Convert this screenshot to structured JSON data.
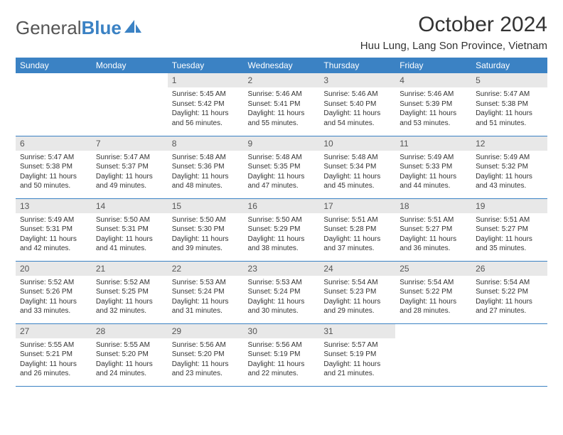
{
  "brand": {
    "part1": "General",
    "part2": "Blue"
  },
  "title": "October 2024",
  "location": "Huu Lung, Lang Son Province, Vietnam",
  "colors": {
    "header_bg": "#3b82c4",
    "header_text": "#ffffff",
    "daynum_bg": "#e8e8e8",
    "text": "#333333",
    "row_border": "#3b82c4"
  },
  "fonts": {
    "title_size_pt": 22,
    "location_size_pt": 11,
    "dayhead_size_pt": 9,
    "body_size_pt": 7.5
  },
  "day_headers": [
    "Sunday",
    "Monday",
    "Tuesday",
    "Wednesday",
    "Thursday",
    "Friday",
    "Saturday"
  ],
  "weeks": [
    [
      {
        "num": "",
        "sunrise": "",
        "sunset": "",
        "daylight": ""
      },
      {
        "num": "",
        "sunrise": "",
        "sunset": "",
        "daylight": ""
      },
      {
        "num": "1",
        "sunrise": "Sunrise: 5:45 AM",
        "sunset": "Sunset: 5:42 PM",
        "daylight": "Daylight: 11 hours and 56 minutes."
      },
      {
        "num": "2",
        "sunrise": "Sunrise: 5:46 AM",
        "sunset": "Sunset: 5:41 PM",
        "daylight": "Daylight: 11 hours and 55 minutes."
      },
      {
        "num": "3",
        "sunrise": "Sunrise: 5:46 AM",
        "sunset": "Sunset: 5:40 PM",
        "daylight": "Daylight: 11 hours and 54 minutes."
      },
      {
        "num": "4",
        "sunrise": "Sunrise: 5:46 AM",
        "sunset": "Sunset: 5:39 PM",
        "daylight": "Daylight: 11 hours and 53 minutes."
      },
      {
        "num": "5",
        "sunrise": "Sunrise: 5:47 AM",
        "sunset": "Sunset: 5:38 PM",
        "daylight": "Daylight: 11 hours and 51 minutes."
      }
    ],
    [
      {
        "num": "6",
        "sunrise": "Sunrise: 5:47 AM",
        "sunset": "Sunset: 5:38 PM",
        "daylight": "Daylight: 11 hours and 50 minutes."
      },
      {
        "num": "7",
        "sunrise": "Sunrise: 5:47 AM",
        "sunset": "Sunset: 5:37 PM",
        "daylight": "Daylight: 11 hours and 49 minutes."
      },
      {
        "num": "8",
        "sunrise": "Sunrise: 5:48 AM",
        "sunset": "Sunset: 5:36 PM",
        "daylight": "Daylight: 11 hours and 48 minutes."
      },
      {
        "num": "9",
        "sunrise": "Sunrise: 5:48 AM",
        "sunset": "Sunset: 5:35 PM",
        "daylight": "Daylight: 11 hours and 47 minutes."
      },
      {
        "num": "10",
        "sunrise": "Sunrise: 5:48 AM",
        "sunset": "Sunset: 5:34 PM",
        "daylight": "Daylight: 11 hours and 45 minutes."
      },
      {
        "num": "11",
        "sunrise": "Sunrise: 5:49 AM",
        "sunset": "Sunset: 5:33 PM",
        "daylight": "Daylight: 11 hours and 44 minutes."
      },
      {
        "num": "12",
        "sunrise": "Sunrise: 5:49 AM",
        "sunset": "Sunset: 5:32 PM",
        "daylight": "Daylight: 11 hours and 43 minutes."
      }
    ],
    [
      {
        "num": "13",
        "sunrise": "Sunrise: 5:49 AM",
        "sunset": "Sunset: 5:31 PM",
        "daylight": "Daylight: 11 hours and 42 minutes."
      },
      {
        "num": "14",
        "sunrise": "Sunrise: 5:50 AM",
        "sunset": "Sunset: 5:31 PM",
        "daylight": "Daylight: 11 hours and 41 minutes."
      },
      {
        "num": "15",
        "sunrise": "Sunrise: 5:50 AM",
        "sunset": "Sunset: 5:30 PM",
        "daylight": "Daylight: 11 hours and 39 minutes."
      },
      {
        "num": "16",
        "sunrise": "Sunrise: 5:50 AM",
        "sunset": "Sunset: 5:29 PM",
        "daylight": "Daylight: 11 hours and 38 minutes."
      },
      {
        "num": "17",
        "sunrise": "Sunrise: 5:51 AM",
        "sunset": "Sunset: 5:28 PM",
        "daylight": "Daylight: 11 hours and 37 minutes."
      },
      {
        "num": "18",
        "sunrise": "Sunrise: 5:51 AM",
        "sunset": "Sunset: 5:27 PM",
        "daylight": "Daylight: 11 hours and 36 minutes."
      },
      {
        "num": "19",
        "sunrise": "Sunrise: 5:51 AM",
        "sunset": "Sunset: 5:27 PM",
        "daylight": "Daylight: 11 hours and 35 minutes."
      }
    ],
    [
      {
        "num": "20",
        "sunrise": "Sunrise: 5:52 AM",
        "sunset": "Sunset: 5:26 PM",
        "daylight": "Daylight: 11 hours and 33 minutes."
      },
      {
        "num": "21",
        "sunrise": "Sunrise: 5:52 AM",
        "sunset": "Sunset: 5:25 PM",
        "daylight": "Daylight: 11 hours and 32 minutes."
      },
      {
        "num": "22",
        "sunrise": "Sunrise: 5:53 AM",
        "sunset": "Sunset: 5:24 PM",
        "daylight": "Daylight: 11 hours and 31 minutes."
      },
      {
        "num": "23",
        "sunrise": "Sunrise: 5:53 AM",
        "sunset": "Sunset: 5:24 PM",
        "daylight": "Daylight: 11 hours and 30 minutes."
      },
      {
        "num": "24",
        "sunrise": "Sunrise: 5:54 AM",
        "sunset": "Sunset: 5:23 PM",
        "daylight": "Daylight: 11 hours and 29 minutes."
      },
      {
        "num": "25",
        "sunrise": "Sunrise: 5:54 AM",
        "sunset": "Sunset: 5:22 PM",
        "daylight": "Daylight: 11 hours and 28 minutes."
      },
      {
        "num": "26",
        "sunrise": "Sunrise: 5:54 AM",
        "sunset": "Sunset: 5:22 PM",
        "daylight": "Daylight: 11 hours and 27 minutes."
      }
    ],
    [
      {
        "num": "27",
        "sunrise": "Sunrise: 5:55 AM",
        "sunset": "Sunset: 5:21 PM",
        "daylight": "Daylight: 11 hours and 26 minutes."
      },
      {
        "num": "28",
        "sunrise": "Sunrise: 5:55 AM",
        "sunset": "Sunset: 5:20 PM",
        "daylight": "Daylight: 11 hours and 24 minutes."
      },
      {
        "num": "29",
        "sunrise": "Sunrise: 5:56 AM",
        "sunset": "Sunset: 5:20 PM",
        "daylight": "Daylight: 11 hours and 23 minutes."
      },
      {
        "num": "30",
        "sunrise": "Sunrise: 5:56 AM",
        "sunset": "Sunset: 5:19 PM",
        "daylight": "Daylight: 11 hours and 22 minutes."
      },
      {
        "num": "31",
        "sunrise": "Sunrise: 5:57 AM",
        "sunset": "Sunset: 5:19 PM",
        "daylight": "Daylight: 11 hours and 21 minutes."
      },
      {
        "num": "",
        "sunrise": "",
        "sunset": "",
        "daylight": ""
      },
      {
        "num": "",
        "sunrise": "",
        "sunset": "",
        "daylight": ""
      }
    ]
  ]
}
